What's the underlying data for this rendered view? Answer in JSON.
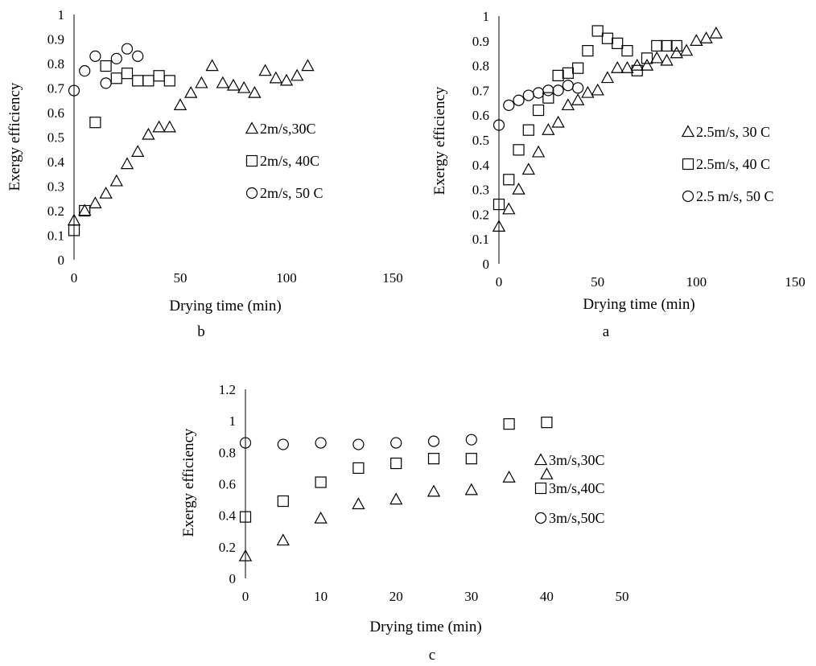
{
  "chart_data": [
    {
      "panel": "b",
      "type": "scatter",
      "xlabel": "Drying time (min)",
      "ylabel": "Exergy efficiency",
      "xlim": [
        0,
        150
      ],
      "ylim": [
        0,
        1
      ],
      "xticks": [
        "0",
        "50",
        "100",
        "150"
      ],
      "yticks": [
        "0",
        "0.1",
        "0.2",
        "0.3",
        "0.4",
        "0.5",
        "0.6",
        "0.7",
        "0.8",
        "0.9",
        "1"
      ],
      "legend": "right",
      "grid": false,
      "series": [
        {
          "name": "2m/s,30C",
          "marker": "triangle",
          "x": [
            0,
            5,
            10,
            15,
            20,
            25,
            30,
            35,
            40,
            45,
            50,
            55,
            60,
            65,
            70,
            75,
            80,
            85,
            90,
            95,
            100,
            105,
            110
          ],
          "y": [
            0.16,
            0.2,
            0.23,
            0.27,
            0.32,
            0.39,
            0.44,
            0.51,
            0.54,
            0.54,
            0.63,
            0.68,
            0.72,
            0.79,
            0.72,
            0.71,
            0.7,
            0.68,
            0.77,
            0.74,
            0.73,
            0.75,
            0.79
          ]
        },
        {
          "name": "2m/s, 40C",
          "marker": "square",
          "x": [
            0,
            5,
            10,
            15,
            20,
            25,
            30,
            35,
            40,
            45
          ],
          "y": [
            0.12,
            0.2,
            0.56,
            0.79,
            0.74,
            0.76,
            0.73,
            0.73,
            0.75,
            0.73
          ]
        },
        {
          "name": "2m/s, 50 C",
          "marker": "circle",
          "x": [
            0,
            5,
            10,
            15,
            20,
            25,
            30
          ],
          "y": [
            0.69,
            0.77,
            0.83,
            0.72,
            0.82,
            0.86,
            0.83
          ]
        }
      ]
    },
    {
      "panel": "a",
      "type": "scatter",
      "xlabel": "Drying time (min)",
      "ylabel": "Exergy efficiency",
      "xlim": [
        0,
        150
      ],
      "ylim": [
        0,
        1
      ],
      "xticks": [
        "0",
        "50",
        "100",
        "150"
      ],
      "yticks": [
        "0",
        "0.1",
        "0.2",
        "0.3",
        "0.4",
        "0.5",
        "0.6",
        "0.7",
        "0.8",
        "0.9",
        "1"
      ],
      "legend": "right",
      "grid": false,
      "series": [
        {
          "name": "2.5m/s, 30 C",
          "marker": "triangle",
          "x": [
            0,
            5,
            10,
            15,
            20,
            25,
            30,
            35,
            40,
            45,
            50,
            55,
            60,
            65,
            70,
            75,
            80,
            85,
            90,
            95,
            100,
            105,
            110
          ],
          "y": [
            0.15,
            0.22,
            0.3,
            0.38,
            0.45,
            0.54,
            0.57,
            0.64,
            0.66,
            0.69,
            0.7,
            0.75,
            0.79,
            0.79,
            0.8,
            0.8,
            0.83,
            0.82,
            0.85,
            0.86,
            0.9,
            0.91,
            0.93
          ]
        },
        {
          "name": "2.5m/s, 40 C",
          "marker": "square",
          "x": [
            0,
            5,
            10,
            15,
            20,
            25,
            30,
            35,
            40,
            45,
            50,
            55,
            60,
            65,
            70,
            75,
            80,
            85,
            90
          ],
          "y": [
            0.24,
            0.34,
            0.46,
            0.54,
            0.62,
            0.67,
            0.76,
            0.77,
            0.79,
            0.86,
            0.94,
            0.91,
            0.89,
            0.86,
            0.78,
            0.83,
            0.88,
            0.88,
            0.88
          ]
        },
        {
          "name": "2.5 m/s, 50 C",
          "marker": "circle",
          "x": [
            0,
            5,
            10,
            15,
            20,
            25,
            30,
            35,
            40
          ],
          "y": [
            0.56,
            0.64,
            0.66,
            0.68,
            0.69,
            0.7,
            0.7,
            0.72,
            0.71
          ]
        }
      ]
    },
    {
      "panel": "c",
      "type": "scatter",
      "xlabel": "Drying time (min)",
      "ylabel": "Exergy efficiency",
      "xlim": [
        0,
        50
      ],
      "ylim": [
        0,
        1.2
      ],
      "xticks": [
        "0",
        "10",
        "20",
        "30",
        "40",
        "50"
      ],
      "yticks": [
        "0",
        "0.2",
        "0.4",
        "0.6",
        "0.8",
        "1",
        "1.2"
      ],
      "legend": "right",
      "grid": false,
      "series": [
        {
          "name": "3m/s,30C",
          "marker": "triangle",
          "x": [
            0,
            5,
            10,
            15,
            20,
            25,
            30,
            35,
            40
          ],
          "y": [
            0.14,
            0.24,
            0.38,
            0.47,
            0.5,
            0.55,
            0.56,
            0.64,
            0.66
          ]
        },
        {
          "name": "3m/s,40C",
          "marker": "square",
          "x": [
            0,
            5,
            10,
            15,
            20,
            25,
            30,
            35,
            40
          ],
          "y": [
            0.39,
            0.49,
            0.61,
            0.7,
            0.73,
            0.76,
            0.76,
            0.98,
            0.99
          ]
        },
        {
          "name": "3m/s,50C",
          "marker": "circle",
          "x": [
            0,
            5,
            10,
            15,
            20,
            25,
            30
          ],
          "y": [
            0.86,
            0.85,
            0.86,
            0.85,
            0.86,
            0.87,
            0.88
          ]
        }
      ]
    }
  ]
}
